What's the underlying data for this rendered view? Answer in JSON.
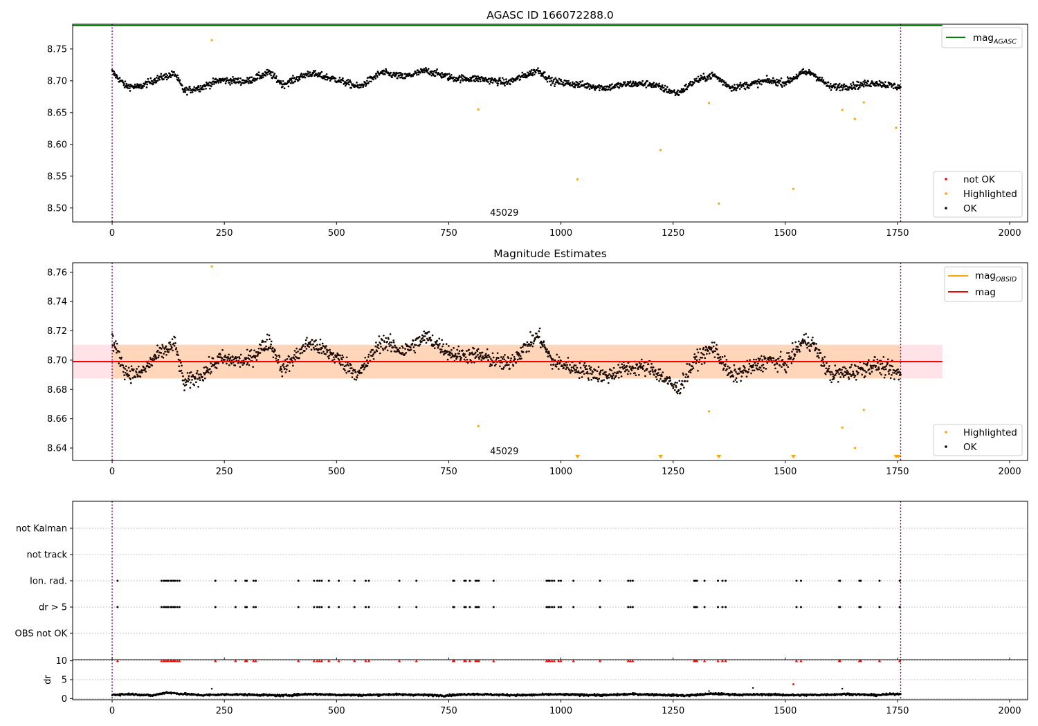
{
  "colors": {
    "ok": "#000000",
    "highlighted": "#FFA500",
    "not_ok": "#FF0000",
    "mag_agasc": "#008000",
    "mag_obsid": "#FFA500",
    "mag": "#FF0000",
    "band_fill": "#FFC0CB",
    "band_obs_fill": "#FFA500",
    "obs_boundary": "#800080",
    "grid": "#b0b0b0"
  },
  "chart_data": [
    {
      "type": "scatter",
      "title": "AGASC ID 166072288.0",
      "xlabel": "",
      "ylabel": "",
      "xlim": [
        -88,
        2040
      ],
      "ylim": [
        8.478,
        8.789
      ],
      "xticks": [
        0,
        250,
        500,
        750,
        1000,
        1250,
        1500,
        1750,
        2000
      ],
      "yticks": [
        8.5,
        8.55,
        8.6,
        8.65,
        8.7,
        8.75
      ],
      "ytick_labels": [
        "8.50",
        "8.55",
        "8.60",
        "8.65",
        "8.70",
        "8.75"
      ],
      "lines": [
        {
          "name": "mag_AGASC",
          "y": 8.787,
          "x_range": [
            -88,
            1850
          ]
        }
      ],
      "obs_boundaries": [
        0,
        1757
      ],
      "obs_label": "45029",
      "obs_label_x": 880,
      "highlighted_points": {
        "x": [
          222,
          816,
          1037,
          1222,
          1330,
          1352,
          1518,
          1627,
          1655,
          1675,
          1747
        ],
        "y": [
          8.764,
          8.655,
          8.545,
          8.591,
          8.665,
          8.507,
          8.53,
          8.654,
          8.64,
          8.666,
          8.626
        ]
      },
      "ok_trend": {
        "x": [
          0,
          30,
          60,
          100,
          140,
          160,
          200,
          240,
          300,
          350,
          380,
          440,
          500,
          550,
          600,
          650,
          700,
          760,
          820,
          880,
          950,
          980,
          1040,
          1100,
          1150,
          1200,
          1260,
          1300,
          1340,
          1380,
          1420,
          1460,
          1500,
          1540,
          1560,
          1600,
          1650,
          1700,
          1757
        ],
        "y": [
          8.714,
          8.692,
          8.69,
          8.703,
          8.711,
          8.684,
          8.69,
          8.701,
          8.699,
          8.713,
          8.694,
          8.712,
          8.702,
          8.69,
          8.713,
          8.706,
          8.716,
          8.704,
          8.703,
          8.697,
          8.717,
          8.699,
          8.694,
          8.689,
          8.695,
          8.695,
          8.68,
          8.7,
          8.709,
          8.689,
          8.694,
          8.7,
          8.697,
          8.713,
          8.712,
          8.69,
          8.692,
          8.697,
          8.69
        ]
      },
      "legends": [
        {
          "position": "top-right",
          "entries": [
            {
              "label": "mag",
              "subscript": "AGASC",
              "kind": "line",
              "color": "#008000"
            }
          ]
        },
        {
          "position": "lower-right",
          "entries": [
            {
              "label": "not OK",
              "kind": "marker",
              "color": "#FF0000"
            },
            {
              "label": "Highlighted",
              "kind": "marker",
              "color": "#FFA500"
            },
            {
              "label": "OK",
              "kind": "marker",
              "color": "#000000"
            }
          ]
        }
      ]
    },
    {
      "type": "scatter",
      "title": "Magnitude Estimates",
      "xlabel": "",
      "ylabel": "",
      "xlim": [
        -88,
        2040
      ],
      "ylim": [
        8.6315,
        8.7665
      ],
      "xticks": [
        0,
        250,
        500,
        750,
        1000,
        1250,
        1500,
        1750,
        2000
      ],
      "yticks": [
        8.64,
        8.66,
        8.68,
        8.7,
        8.72,
        8.74,
        8.76
      ],
      "ytick_labels": [
        "8.64",
        "8.66",
        "8.68",
        "8.70",
        "8.72",
        "8.74",
        "8.76"
      ],
      "lines": [
        {
          "name": "mag_OBSID",
          "y": 8.699,
          "x_range": [
            0,
            1757
          ]
        },
        {
          "name": "mag",
          "y": 8.699,
          "x_range": [
            -88,
            1850
          ]
        }
      ],
      "bands": [
        {
          "name": "mag",
          "y_range": [
            8.6875,
            8.7105
          ],
          "x_range": [
            -88,
            1850
          ]
        },
        {
          "name": "mag_OBSID",
          "y_range": [
            8.6875,
            8.7105
          ],
          "x_range": [
            0,
            1757
          ]
        }
      ],
      "obs_boundaries": [
        0,
        1757
      ],
      "obs_label": "45029",
      "obs_label_x": 880,
      "highlighted_points": {
        "x": [
          222,
          816,
          1330,
          1627,
          1655,
          1675
        ],
        "y": [
          8.764,
          8.655,
          8.665,
          8.654,
          8.64,
          8.666
        ]
      },
      "below_range_markers": {
        "x": [
          1037,
          1222,
          1352,
          1518,
          1747,
          1752
        ]
      },
      "ok_trend": {
        "x": [
          0,
          30,
          60,
          100,
          140,
          160,
          200,
          240,
          300,
          350,
          380,
          440,
          500,
          550,
          600,
          650,
          700,
          760,
          820,
          880,
          950,
          980,
          1040,
          1100,
          1150,
          1200,
          1260,
          1300,
          1340,
          1380,
          1420,
          1460,
          1500,
          1540,
          1560,
          1600,
          1650,
          1700,
          1757
        ],
        "y": [
          8.714,
          8.692,
          8.69,
          8.703,
          8.711,
          8.684,
          8.69,
          8.701,
          8.699,
          8.713,
          8.694,
          8.712,
          8.702,
          8.69,
          8.713,
          8.706,
          8.716,
          8.704,
          8.703,
          8.697,
          8.717,
          8.699,
          8.694,
          8.689,
          8.695,
          8.695,
          8.68,
          8.7,
          8.709,
          8.689,
          8.694,
          8.7,
          8.697,
          8.713,
          8.712,
          8.69,
          8.692,
          8.697,
          8.69
        ]
      },
      "legends": [
        {
          "position": "top-right",
          "entries": [
            {
              "label": "mag",
              "subscript": "OBSID",
              "kind": "line",
              "color": "#FFA500"
            },
            {
              "label": "mag",
              "kind": "line",
              "color": "#FF0000"
            }
          ]
        },
        {
          "position": "lower-right",
          "entries": [
            {
              "label": "Highlighted",
              "kind": "marker",
              "color": "#FFA500"
            },
            {
              "label": "OK",
              "kind": "marker",
              "color": "#000000"
            }
          ]
        }
      ]
    },
    {
      "type": "scatter",
      "title": "",
      "xlabel": "",
      "ylabel": "",
      "xlim": [
        -88,
        2040
      ],
      "categories": [
        "not Kalman",
        "not track",
        "Ion. rad.",
        "dr > 5",
        "OBS not OK"
      ],
      "obs_boundaries": [
        0,
        1757
      ],
      "flags": {
        "not Kalman": [],
        "not track": [],
        "OBS not OK": [],
        "Ion. rad.": [
          12,
          110,
          115,
          118,
          122,
          125,
          130,
          133,
          137,
          140,
          145,
          150,
          230,
          275,
          297,
          300,
          315,
          320,
          415,
          450,
          457,
          462,
          467,
          483,
          505,
          540,
          565,
          572,
          640,
          678,
          760,
          762,
          785,
          788,
          797,
          810,
          813,
          817,
          850,
          968,
          972,
          975,
          980,
          985,
          995,
          1000,
          1028,
          1087,
          1150,
          1155,
          1160,
          1297,
          1300,
          1303,
          1320,
          1350,
          1360,
          1367,
          1525,
          1535,
          1620,
          1622,
          1665,
          1668,
          1710,
          1755
        ],
        "dr > 5": [
          12,
          110,
          115,
          118,
          122,
          125,
          130,
          133,
          137,
          140,
          145,
          150,
          230,
          275,
          297,
          300,
          315,
          320,
          415,
          450,
          457,
          462,
          467,
          483,
          505,
          540,
          565,
          572,
          640,
          678,
          760,
          762,
          785,
          788,
          797,
          810,
          813,
          817,
          850,
          968,
          972,
          975,
          980,
          985,
          995,
          1000,
          1028,
          1087,
          1150,
          1155,
          1160,
          1297,
          1300,
          1303,
          1320,
          1350,
          1360,
          1367,
          1525,
          1535,
          1620,
          1622,
          1665,
          1668,
          1710,
          1755
        ]
      }
    },
    {
      "type": "scatter",
      "title": "",
      "xlabel": "",
      "ylabel": "dr",
      "xlim": [
        -88,
        2040
      ],
      "ylim": [
        -0.3,
        10.3
      ],
      "xticks": [
        0,
        250,
        500,
        750,
        1000,
        1250,
        1500,
        1750,
        2000
      ],
      "yticks": [
        0,
        5,
        10
      ],
      "obs_boundaries": [
        0,
        1757
      ],
      "threshold_line": 10,
      "dr_trend": {
        "x": [
          0,
          40,
          90,
          120,
          150,
          200,
          260,
          320,
          380,
          440,
          500,
          560,
          620,
          680,
          740,
          800,
          860,
          920,
          980,
          1040,
          1100,
          1160,
          1220,
          1280,
          1340,
          1400,
          1460,
          1520,
          1580,
          1640,
          1700,
          1757
        ],
        "y": [
          1.0,
          1.2,
          0.8,
          1.6,
          1.3,
          0.9,
          1.1,
          1.0,
          0.8,
          1.2,
          1.0,
          0.9,
          1.1,
          1.0,
          0.8,
          1.2,
          1.0,
          0.9,
          1.1,
          1.0,
          0.9,
          1.2,
          1.0,
          0.8,
          1.3,
          1.0,
          1.1,
          0.9,
          1.0,
          1.2,
          0.9,
          1.3
        ]
      },
      "dr_outliers": {
        "x": [
          222,
          1330,
          1428,
          1627
        ],
        "y": [
          2.6,
          2.0,
          2.8,
          2.6
        ]
      },
      "dr_not_ok": {
        "x": [
          1518
        ],
        "y": [
          3.8
        ]
      },
      "clipped_markers": [
        12,
        110,
        115,
        118,
        122,
        125,
        130,
        133,
        137,
        140,
        145,
        150,
        230,
        275,
        297,
        300,
        315,
        320,
        415,
        450,
        457,
        462,
        467,
        483,
        505,
        540,
        565,
        572,
        640,
        678,
        760,
        762,
        785,
        788,
        797,
        810,
        813,
        817,
        850,
        968,
        972,
        975,
        980,
        985,
        995,
        1000,
        1028,
        1087,
        1150,
        1155,
        1160,
        1297,
        1300,
        1303,
        1320,
        1350,
        1360,
        1367,
        1525,
        1535,
        1620,
        1622,
        1665,
        1668,
        1710,
        1755
      ]
    }
  ]
}
